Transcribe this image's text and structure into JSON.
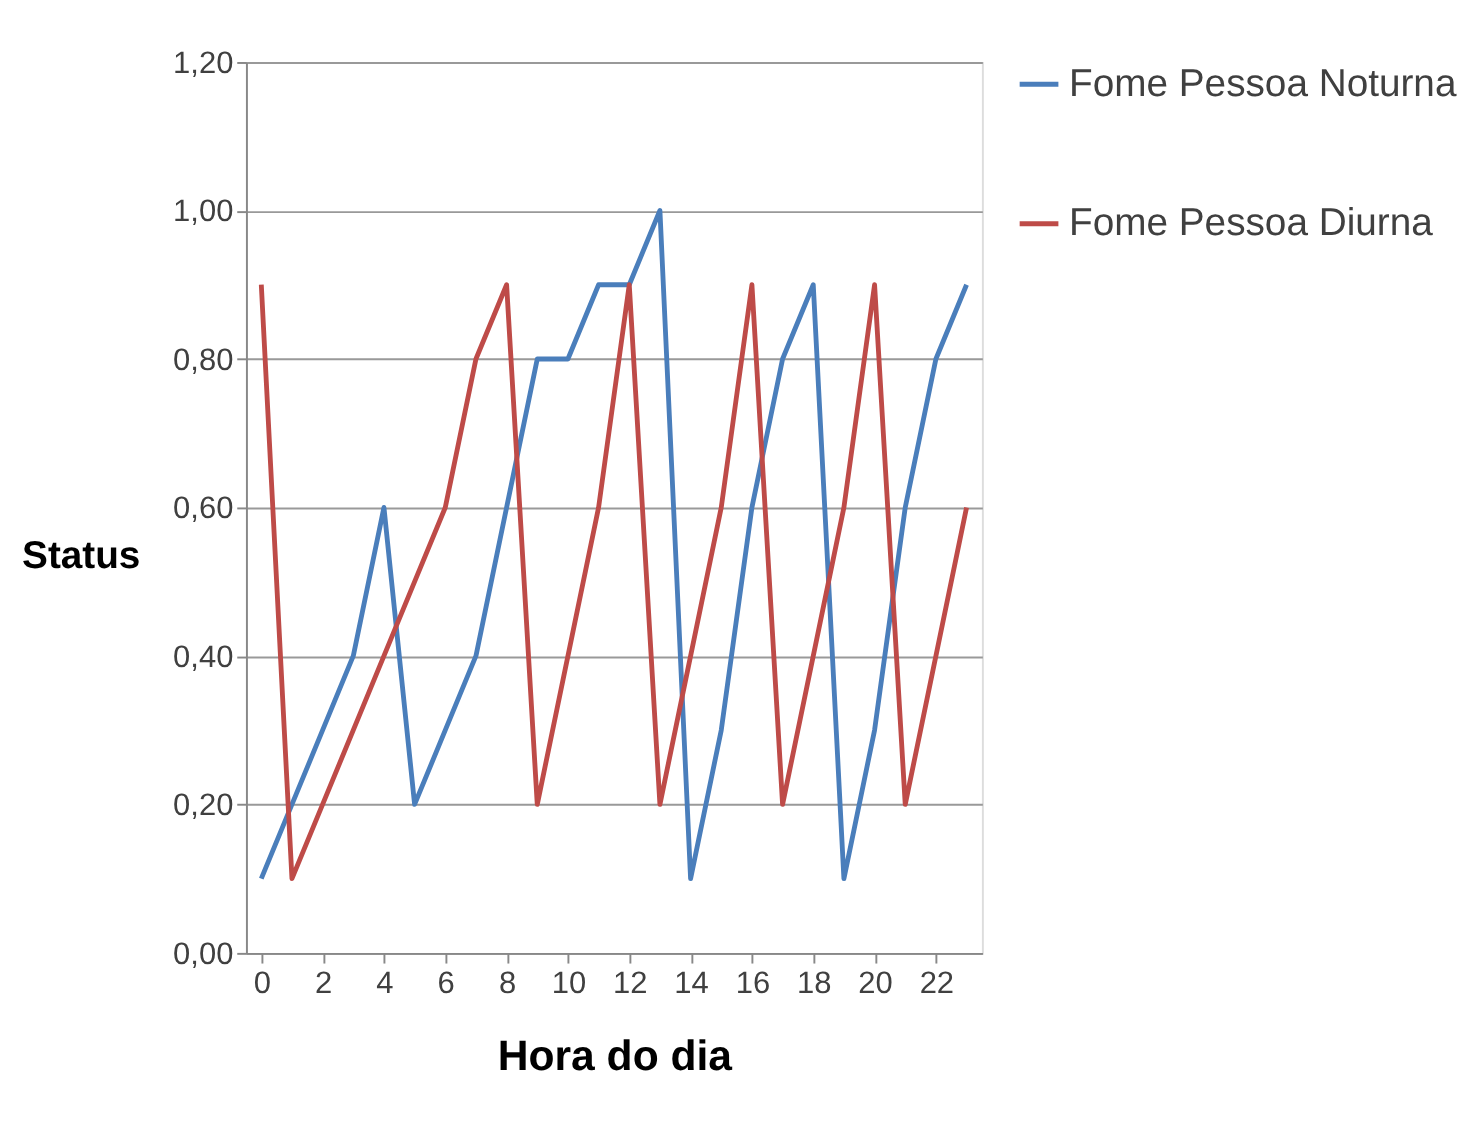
{
  "chart_data": {
    "type": "line",
    "xlabel": "Hora do dia",
    "ylabel": "Status",
    "x": [
      0,
      1,
      2,
      3,
      4,
      5,
      6,
      7,
      8,
      9,
      10,
      11,
      12,
      13,
      14,
      15,
      16,
      17,
      18,
      19,
      20,
      21,
      22,
      23
    ],
    "series": [
      {
        "name": "Fome Pessoa Noturna",
        "color": "#4a7ebb",
        "values": [
          0.1,
          0.2,
          0.3,
          0.4,
          0.6,
          0.2,
          0.3,
          0.4,
          0.6,
          0.8,
          0.8,
          0.9,
          0.9,
          1.0,
          0.1,
          0.3,
          0.6,
          0.8,
          0.9,
          0.1,
          0.3,
          0.6,
          0.8,
          0.9
        ]
      },
      {
        "name": "Fome Pessoa Diurna",
        "color": "#be4b48",
        "values": [
          0.9,
          0.1,
          0.2,
          0.3,
          0.4,
          0.5,
          0.6,
          0.8,
          0.9,
          0.2,
          0.4,
          0.6,
          0.9,
          0.2,
          0.4,
          0.6,
          0.9,
          0.2,
          0.4,
          0.6,
          0.9,
          0.2,
          0.4,
          0.6
        ]
      }
    ],
    "xlim": [
      -0.5,
      23.5
    ],
    "xticks": [
      0,
      2,
      4,
      6,
      8,
      10,
      12,
      14,
      16,
      18,
      20,
      22
    ],
    "ylim": [
      0,
      1.2
    ],
    "yticks": [
      {
        "value": 0,
        "label": "0,00"
      },
      {
        "value": 0.2,
        "label": "0,20"
      },
      {
        "value": 0.4,
        "label": "0,40"
      },
      {
        "value": 0.6,
        "label": "0,60"
      },
      {
        "value": 0.8,
        "label": "0,80"
      },
      {
        "value": 1.0,
        "label": "1,00"
      },
      {
        "value": 1.2,
        "label": "1,20"
      }
    ],
    "grid": "y",
    "legend": "right",
    "marker": "none",
    "line_style": "solid"
  }
}
